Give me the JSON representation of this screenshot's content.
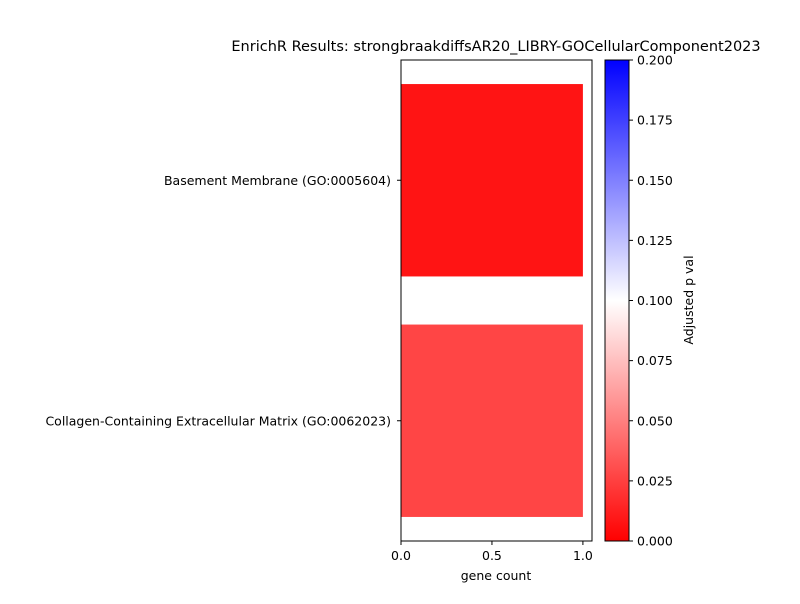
{
  "chart_data": {
    "type": "bar",
    "orientation": "horizontal",
    "title": "EnrichR Results: strongbraakdiffsAR20_LIBRY-GOCellularComponent2023",
    "xlabel": "gene count",
    "ylabel": "",
    "categories": [
      "Basement Membrane (GO:0005604)",
      "Collagen-Containing Extracellular Matrix (GO:0062023)"
    ],
    "values": [
      1,
      1
    ],
    "adjusted_p": [
      0.008,
      0.027
    ],
    "xlim": [
      0,
      1.05
    ],
    "xticks": [
      0.0,
      0.5,
      1.0
    ],
    "xtick_labels": [
      "0.0",
      "0.5",
      "1.0"
    ],
    "grid": false,
    "colorbar": {
      "label": "Adjusted p val",
      "range": [
        0,
        0.2
      ],
      "ticks": [
        0,
        0.025,
        0.05,
        0.075,
        0.1,
        0.125,
        0.15,
        0.175,
        0.2
      ],
      "tick_labels": [
        "0.000",
        "0.025",
        "0.050",
        "0.075",
        "0.100",
        "0.125",
        "0.150",
        "0.175",
        "0.200"
      ],
      "colormap": [
        "#ff0000",
        "#ffffff",
        "#0000ff"
      ]
    }
  }
}
